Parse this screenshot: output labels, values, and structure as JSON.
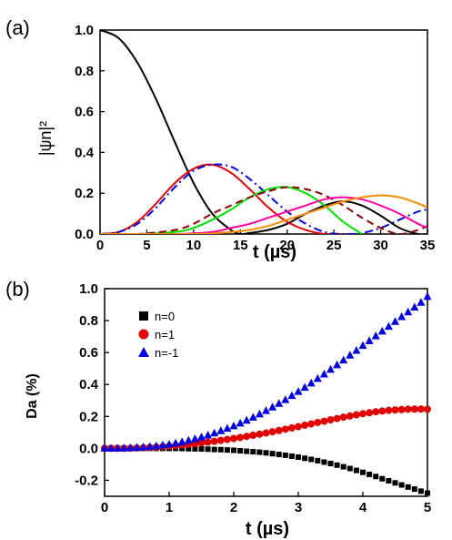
{
  "chart_data": [
    {
      "panel_label": "(a)",
      "type": "line",
      "xlabel": "t (µs)",
      "ylabel": "|ψn|²",
      "xlim": [
        0,
        35
      ],
      "ylim": [
        0,
        1.0
      ],
      "xticks": [
        0,
        5,
        10,
        15,
        20,
        25,
        30,
        35
      ],
      "yticks": [
        0.0,
        0.2,
        0.4,
        0.6,
        0.8,
        1.0
      ],
      "xtick_labels": [
        "0",
        "5",
        "10",
        "15",
        "20",
        "25",
        "30",
        "35"
      ],
      "ytick_labels": [
        "0.0",
        "0.2",
        "0.4",
        "0.6",
        "0.8",
        "1.0"
      ],
      "grid": false,
      "legend": "none",
      "series": [
        {
          "color": "#000000",
          "style": "solid",
          "x": [
            0,
            2,
            4,
            6,
            8,
            10,
            12,
            14,
            15,
            16,
            18,
            20,
            22,
            24,
            26,
            28,
            30,
            32,
            34,
            35
          ],
          "y": [
            1.0,
            0.96,
            0.84,
            0.66,
            0.45,
            0.25,
            0.1,
            0.02,
            0.0,
            0.005,
            0.02,
            0.05,
            0.1,
            0.14,
            0.16,
            0.14,
            0.09,
            0.03,
            0.0,
            0.0
          ]
        },
        {
          "color": "#e00000",
          "style": "solid",
          "x": [
            0,
            2,
            4,
            6,
            8,
            10,
            12,
            14,
            16,
            18,
            20,
            22,
            24,
            26
          ],
          "y": [
            0.0,
            0.01,
            0.06,
            0.15,
            0.25,
            0.32,
            0.34,
            0.3,
            0.22,
            0.13,
            0.06,
            0.02,
            0.0,
            0.0
          ]
        },
        {
          "color": "#0000e0",
          "style": "dashdot",
          "x": [
            0,
            2,
            4,
            6,
            8,
            10,
            12,
            14,
            16,
            18,
            20,
            22,
            24,
            26,
            28,
            30,
            32,
            34,
            35
          ],
          "y": [
            0.0,
            0.01,
            0.05,
            0.13,
            0.23,
            0.31,
            0.34,
            0.33,
            0.27,
            0.19,
            0.11,
            0.05,
            0.01,
            0.0,
            0.005,
            0.03,
            0.07,
            0.11,
            0.12
          ]
        },
        {
          "color": "#00e000",
          "style": "solid",
          "x": [
            0,
            4,
            8,
            10,
            12,
            14,
            16,
            18,
            20,
            22,
            24,
            26,
            28
          ],
          "y": [
            0.0,
            0.0,
            0.01,
            0.03,
            0.07,
            0.12,
            0.18,
            0.22,
            0.23,
            0.2,
            0.14,
            0.06,
            0.0
          ]
        },
        {
          "color": "#8b0000",
          "style": "dashed",
          "x": [
            0,
            4,
            8,
            10,
            12,
            14,
            16,
            18,
            20,
            22,
            24,
            26,
            28,
            30,
            32,
            34,
            35
          ],
          "y": [
            0.0,
            0.0,
            0.02,
            0.05,
            0.1,
            0.14,
            0.18,
            0.21,
            0.23,
            0.22,
            0.19,
            0.14,
            0.08,
            0.03,
            0.0,
            0.02,
            0.04
          ]
        },
        {
          "color": "#ff00a0",
          "style": "solid",
          "x": [
            0,
            8,
            12,
            14,
            16,
            18,
            20,
            22,
            24,
            26,
            28,
            30,
            32,
            34,
            35
          ],
          "y": [
            0.0,
            0.0,
            0.01,
            0.03,
            0.05,
            0.08,
            0.11,
            0.14,
            0.17,
            0.18,
            0.17,
            0.14,
            0.1,
            0.05,
            0.03
          ]
        },
        {
          "color": "#ff8c00",
          "style": "solid",
          "x": [
            0,
            10,
            14,
            16,
            18,
            20,
            22,
            24,
            26,
            28,
            30,
            32,
            34,
            35
          ],
          "y": [
            0.0,
            0.0,
            0.01,
            0.02,
            0.04,
            0.07,
            0.1,
            0.13,
            0.16,
            0.18,
            0.19,
            0.18,
            0.15,
            0.13
          ]
        }
      ]
    },
    {
      "panel_label": "(b)",
      "type": "scatter",
      "xlabel": "t (µs)",
      "ylabel": "Da (%)",
      "xlim": [
        0,
        5
      ],
      "ylim": [
        -0.3,
        1.0
      ],
      "xticks": [
        0,
        1,
        2,
        3,
        4,
        5
      ],
      "yticks": [
        -0.2,
        0.0,
        0.2,
        0.4,
        0.6,
        0.8,
        1.0
      ],
      "xtick_labels": [
        "0",
        "1",
        "2",
        "3",
        "4",
        "5"
      ],
      "ytick_labels": [
        "-0.2",
        "0.0",
        "0.2",
        "0.4",
        "0.6",
        "0.8",
        "1.0"
      ],
      "grid": false,
      "legend": "top-left",
      "series": [
        {
          "name": "n=0",
          "color": "#000000",
          "marker": "square",
          "x0": 0,
          "dx": 0.1,
          "y": [
            0,
            0,
            0,
            0,
            0,
            0,
            0,
            0,
            0,
            0,
            0,
            0,
            -0.001,
            -0.002,
            -0.003,
            -0.004,
            -0.005,
            -0.007,
            -0.008,
            -0.01,
            -0.012,
            -0.015,
            -0.018,
            -0.021,
            -0.024,
            -0.028,
            -0.033,
            -0.038,
            -0.043,
            -0.049,
            -0.055,
            -0.062,
            -0.069,
            -0.077,
            -0.086,
            -0.095,
            -0.105,
            -0.115,
            -0.126,
            -0.138,
            -0.15,
            -0.163,
            -0.176,
            -0.19,
            -0.203,
            -0.216,
            -0.229,
            -0.242,
            -0.255,
            -0.268,
            -0.28
          ]
        },
        {
          "name": "n=1",
          "color": "#e00000",
          "marker": "circle",
          "x0": 0,
          "dx": 0.1,
          "y": [
            0,
            0,
            0,
            0,
            0.001,
            0.002,
            0.004,
            0.006,
            0.008,
            0.011,
            0.014,
            0.017,
            0.021,
            0.025,
            0.029,
            0.034,
            0.039,
            0.044,
            0.05,
            0.056,
            0.062,
            0.068,
            0.075,
            0.082,
            0.089,
            0.096,
            0.104,
            0.112,
            0.12,
            0.128,
            0.136,
            0.145,
            0.153,
            0.162,
            0.17,
            0.179,
            0.187,
            0.195,
            0.203,
            0.21,
            0.217,
            0.223,
            0.229,
            0.234,
            0.238,
            0.241,
            0.243,
            0.245,
            0.246,
            0.246,
            0.245
          ]
        },
        {
          "name": "n=-1",
          "color": "#0000e0",
          "marker": "triangle",
          "x0": 0,
          "dx": 0.1,
          "y": [
            0,
            0,
            0,
            0.001,
            0.002,
            0.004,
            0.007,
            0.01,
            0.014,
            0.019,
            0.025,
            0.032,
            0.04,
            0.049,
            0.059,
            0.07,
            0.082,
            0.095,
            0.109,
            0.124,
            0.14,
            0.157,
            0.175,
            0.194,
            0.214,
            0.235,
            0.257,
            0.28,
            0.304,
            0.329,
            0.355,
            0.381,
            0.408,
            0.436,
            0.464,
            0.493,
            0.522,
            0.552,
            0.582,
            0.612,
            0.643,
            0.673,
            0.703,
            0.733,
            0.763,
            0.793,
            0.823,
            0.853,
            0.883,
            0.913,
            0.95
          ]
        }
      ]
    }
  ]
}
